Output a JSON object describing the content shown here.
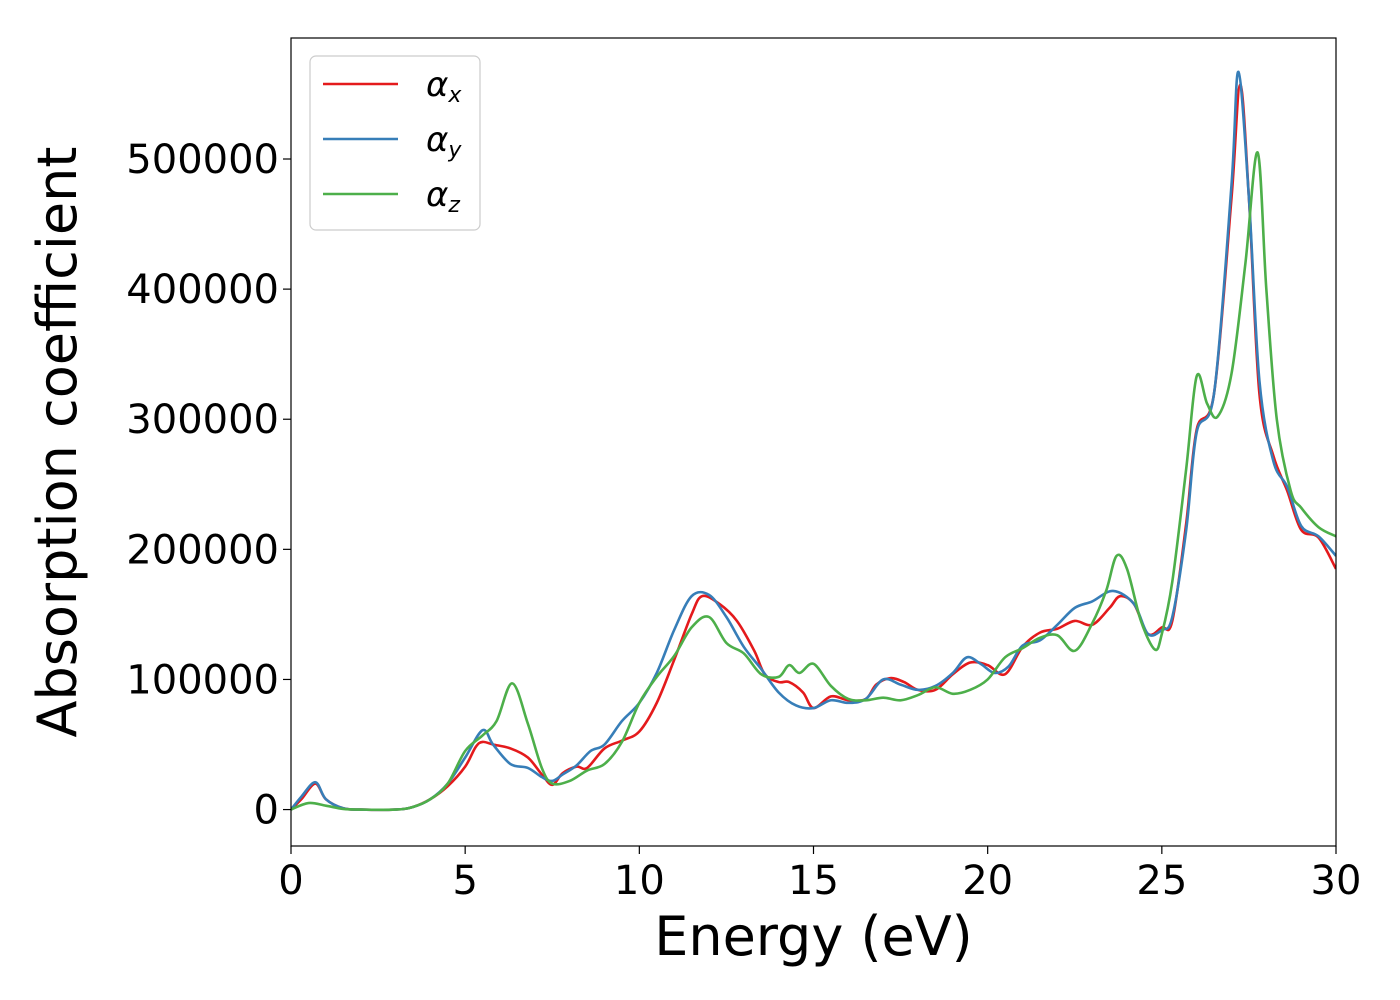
{
  "chart_data": {
    "type": "line",
    "title": "",
    "xlabel": "Energy (eV)",
    "ylabel": "Absorption coefficient",
    "xlim": [
      0,
      30
    ],
    "ylim": [
      -28000,
      593000
    ],
    "xticks": [
      0,
      5,
      10,
      15,
      20,
      25,
      30
    ],
    "yticks": [
      0,
      100000,
      200000,
      300000,
      400000,
      500000
    ],
    "grid": false,
    "legend_position": "top-left",
    "series": [
      {
        "name": "α",
        "subscript": "x",
        "color": "#e41a1c",
        "x": [
          0,
          0.3,
          0.7,
          1.0,
          1.5,
          2,
          3,
          3.5,
          4,
          4.5,
          5,
          5.3,
          5.5,
          5.8,
          6.3,
          6.8,
          7.2,
          7.5,
          7.8,
          8.2,
          8.5,
          9,
          9.5,
          10,
          10.5,
          11,
          11.5,
          11.8,
          12.3,
          12.8,
          13.3,
          13.6,
          14,
          14.3,
          14.7,
          15,
          15.5,
          16,
          16.5,
          16.8,
          17.2,
          17.6,
          18,
          18.5,
          19,
          19.5,
          20,
          20.5,
          21,
          21.5,
          22,
          22.5,
          23,
          23.5,
          23.8,
          24.2,
          24.6,
          25,
          25.3,
          25.7,
          26,
          26.5,
          27,
          27.25,
          27.5,
          27.8,
          28.2,
          28.6,
          29,
          29.5,
          30
        ],
        "y": [
          0,
          8000,
          20000,
          8000,
          1000,
          0,
          0,
          2000,
          8000,
          18000,
          33000,
          48000,
          52000,
          50000,
          47000,
          40000,
          27000,
          19000,
          28000,
          33000,
          32000,
          47000,
          53000,
          60000,
          82000,
          115000,
          150000,
          164000,
          158000,
          145000,
          122000,
          104000,
          98000,
          98000,
          90000,
          78000,
          87000,
          84000,
          85000,
          96000,
          101000,
          98000,
          92000,
          92000,
          104000,
          113000,
          111000,
          104000,
          125000,
          136000,
          139000,
          145000,
          142000,
          155000,
          164000,
          158000,
          135000,
          140000,
          145000,
          220000,
          292000,
          320000,
          470000,
          557000,
          470000,
          320000,
          272000,
          245000,
          215000,
          209000,
          185000
        ]
      },
      {
        "name": "α",
        "subscript": "y",
        "color": "#377eb8",
        "x": [
          0,
          0.3,
          0.7,
          1.0,
          1.5,
          2,
          3,
          3.5,
          4,
          4.5,
          5,
          5.5,
          5.8,
          6.3,
          6.8,
          7.2,
          7.5,
          7.8,
          8.2,
          8.6,
          9,
          9.5,
          10,
          10.5,
          11,
          11.5,
          12,
          12.5,
          13,
          13.5,
          14,
          14.5,
          15,
          15.5,
          16,
          16.5,
          17,
          17.5,
          18,
          18.5,
          19,
          19.4,
          19.8,
          20.2,
          20.6,
          21,
          21.5,
          22,
          22.5,
          23,
          23.6,
          24.2,
          24.6,
          25,
          25.3,
          25.7,
          26,
          26.5,
          27,
          27.2,
          27.5,
          27.8,
          28.2,
          28.6,
          29,
          29.5,
          30
        ],
        "y": [
          0,
          10000,
          21000,
          8000,
          1000,
          0,
          0,
          2000,
          8000,
          20000,
          40000,
          61000,
          50000,
          35000,
          32000,
          25000,
          22000,
          27000,
          34000,
          45000,
          50000,
          68000,
          82000,
          105000,
          138000,
          164000,
          165000,
          148000,
          125000,
          108000,
          90000,
          80000,
          78000,
          84000,
          82000,
          85000,
          100000,
          96000,
          92000,
          95000,
          105000,
          117000,
          112000,
          105000,
          110000,
          126000,
          130000,
          142000,
          155000,
          160000,
          168000,
          158000,
          135000,
          138000,
          148000,
          215000,
          290000,
          320000,
          480000,
          567000,
          470000,
          330000,
          268000,
          248000,
          218000,
          210000,
          195000
        ]
      },
      {
        "name": "α",
        "subscript": "z",
        "color": "#4daf4a",
        "x": [
          0,
          0.5,
          1.0,
          1.5,
          2,
          3,
          3.5,
          4,
          4.5,
          5,
          5.5,
          5.9,
          6.35,
          6.8,
          7.2,
          7.5,
          8,
          8.5,
          9,
          9.5,
          10,
          10.5,
          11,
          11.5,
          12,
          12.5,
          13,
          13.5,
          14,
          14.3,
          14.6,
          15,
          15.5,
          16,
          16.5,
          17,
          17.5,
          18,
          18.5,
          19,
          19.5,
          20,
          20.5,
          21,
          21.5,
          22,
          22.5,
          23,
          23.4,
          23.7,
          24,
          24.4,
          24.8,
          25,
          25.3,
          25.7,
          26,
          26.3,
          26.6,
          27,
          27.4,
          27.75,
          28,
          28.3,
          28.7,
          29,
          29.5,
          30
        ],
        "y": [
          0,
          5000,
          3000,
          500,
          0,
          0,
          2000,
          8000,
          20000,
          45000,
          57000,
          68000,
          97000,
          66000,
          32000,
          20000,
          22000,
          30000,
          35000,
          52000,
          82000,
          102000,
          118000,
          140000,
          148000,
          128000,
          120000,
          104000,
          102000,
          111000,
          105000,
          112000,
          95000,
          85000,
          84000,
          86000,
          84000,
          88000,
          94000,
          89000,
          92000,
          100000,
          117000,
          124000,
          132000,
          134000,
          122000,
          143000,
          168000,
          195000,
          185000,
          145000,
          123000,
          135000,
          175000,
          262000,
          333000,
          312000,
          302000,
          335000,
          420000,
          505000,
          400000,
          300000,
          245000,
          232000,
          217000,
          210000
        ]
      }
    ]
  }
}
